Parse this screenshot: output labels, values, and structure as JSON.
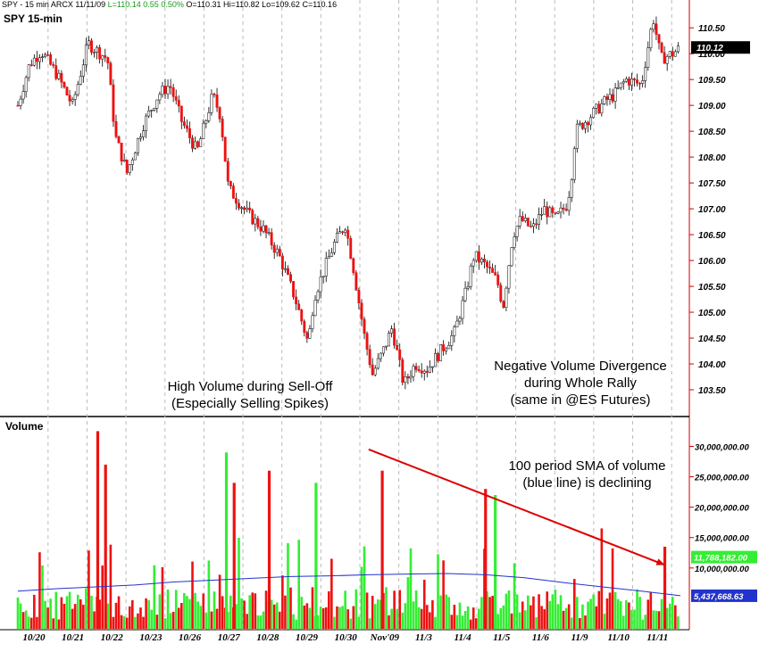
{
  "header": {
    "symbol": "SPY - 15 min",
    "exchange": "ARCX",
    "date": "11/11/09",
    "last": "L=110.14",
    "change": "0.55",
    "change_pct": "0.50%",
    "open": "O=110.31",
    "high": "Hi=110.82",
    "low": "Lo=109.62",
    "close": "C=110.16"
  },
  "chart_data": [
    {
      "type": "candlestick",
      "title": "SPY 15-min",
      "ylim": [
        103.0,
        110.9
      ],
      "y_ticks": [
        "103.50",
        "104.00",
        "104.50",
        "105.00",
        "105.50",
        "106.00",
        "106.50",
        "107.00",
        "107.50",
        "108.00",
        "108.50",
        "109.00",
        "109.50",
        "110.00",
        "110.50"
      ],
      "last_price_label": "110.12",
      "last_price": 110.12,
      "categories": [
        "10/20",
        "10/21",
        "10/22",
        "10/23",
        "10/26",
        "10/27",
        "10/28",
        "10/29",
        "10/30",
        "Nov'09",
        "11/3",
        "11/4",
        "11/5",
        "11/6",
        "11/9",
        "11/10",
        "11/11"
      ],
      "price_path": [
        [
          0,
          109.0
        ],
        [
          0.3,
          109.8
        ],
        [
          0.6,
          110.05
        ],
        [
          1.0,
          109.6
        ],
        [
          1.4,
          109.0
        ],
        [
          1.8,
          110.2
        ],
        [
          2.3,
          109.9
        ],
        [
          2.5,
          108.4
        ],
        [
          2.8,
          107.7
        ],
        [
          3.2,
          108.6
        ],
        [
          3.6,
          109.2
        ],
        [
          3.9,
          109.4
        ],
        [
          4.2,
          108.7
        ],
        [
          4.6,
          108.1
        ],
        [
          5.0,
          109.2
        ],
        [
          5.2,
          108.8
        ],
        [
          5.4,
          107.4
        ],
        [
          5.9,
          106.9
        ],
        [
          6.3,
          106.6
        ],
        [
          6.7,
          106.1
        ],
        [
          7.1,
          105.3
        ],
        [
          7.45,
          104.4
        ],
        [
          7.6,
          105.3
        ],
        [
          8.1,
          106.3
        ],
        [
          8.4,
          106.7
        ],
        [
          8.6,
          105.9
        ],
        [
          8.9,
          104.5
        ],
        [
          9.1,
          103.8
        ],
        [
          9.4,
          104.3
        ],
        [
          9.6,
          104.7
        ],
        [
          9.9,
          103.6
        ],
        [
          10.2,
          104.0
        ],
        [
          10.5,
          103.9
        ],
        [
          10.9,
          104.3
        ],
        [
          11.2,
          104.6
        ],
        [
          11.5,
          105.4
        ],
        [
          11.7,
          106.1
        ],
        [
          12.0,
          105.9
        ],
        [
          12.3,
          105.6
        ],
        [
          12.45,
          105.1
        ],
        [
          12.7,
          106.5
        ],
        [
          12.9,
          106.8
        ],
        [
          13.2,
          106.6
        ],
        [
          13.5,
          107.0
        ],
        [
          13.8,
          106.8
        ],
        [
          14.1,
          107.1
        ],
        [
          14.25,
          107.9
        ],
        [
          14.3,
          108.5
        ],
        [
          14.7,
          108.8
        ],
        [
          15.1,
          109.1
        ],
        [
          15.3,
          109.2
        ],
        [
          15.6,
          109.5
        ],
        [
          16.0,
          109.4
        ],
        [
          16.3,
          110.7
        ],
        [
          16.5,
          109.9
        ],
        [
          16.8,
          110.0
        ],
        [
          17.0,
          110.12
        ]
      ],
      "volume_ylim": [
        0,
        33000000
      ],
      "volume_ticks": [
        "10,000,000.00",
        "15,000,000.00",
        "20,000,000.00",
        "25,000,000.00",
        "30,000,000.00"
      ],
      "volume_title": "Volume",
      "volume_sma_label": "5,437,668.63",
      "volume_sma_value": 5437668.63,
      "volume_last_label": "11,788,182.00",
      "volume_last_value": 11788182,
      "volume_sma_path": [
        [
          0,
          6200000
        ],
        [
          1,
          6600000
        ],
        [
          2,
          6900000
        ],
        [
          3,
          7200000
        ],
        [
          4,
          7700000
        ],
        [
          5,
          8000000
        ],
        [
          6,
          8300000
        ],
        [
          7,
          8600000
        ],
        [
          8,
          8700000
        ],
        [
          9,
          8900000
        ],
        [
          10,
          9000000
        ],
        [
          11,
          9100000
        ],
        [
          12,
          8900000
        ],
        [
          13,
          8400000
        ],
        [
          14,
          7600000
        ],
        [
          15,
          6900000
        ],
        [
          16,
          6200000
        ],
        [
          17,
          5437668
        ]
      ],
      "volume_spikes": [
        [
          2.05,
          32500000
        ],
        [
          2.25,
          27000000
        ],
        [
          5.35,
          29000000
        ],
        [
          5.55,
          24000000
        ],
        [
          6.45,
          26000000
        ],
        [
          7.65,
          24000000
        ],
        [
          9.35,
          26000000
        ],
        [
          12.0,
          23000000
        ],
        [
          12.25,
          22000000
        ],
        [
          16.6,
          13500000
        ]
      ],
      "trend_line": [
        [
          9.0,
          29500000
        ],
        [
          16.6,
          10500000
        ]
      ],
      "x_labels": [
        "10/20",
        "10/21",
        "10/22",
        "10/23",
        "10/26",
        "10/27",
        "10/28",
        "10/29",
        "10/30",
        "Nov'09",
        "11/3",
        "11/4",
        "11/5",
        "11/6",
        "11/9",
        "11/10",
        "11/11"
      ]
    }
  ],
  "annotations": {
    "sell_off": "High Volume during Sell-Off\n(Especially Selling Spikes)",
    "divergence": "Negative Volume Divergence\nduring Whole Rally\n(same in @ES Futures)",
    "sma": "100 period SMA of volume\n(blue line) is declining"
  },
  "colors": {
    "up": "#33ee33",
    "down": "#ee1111",
    "price_line": "#cc0000",
    "sma": "#2233cc",
    "trend": "#dd0000",
    "sma_label_bg": "#2233cc",
    "last_label_bg": "#000000",
    "vol_last_bg": "#33ee33",
    "axis": "#cc0000"
  }
}
